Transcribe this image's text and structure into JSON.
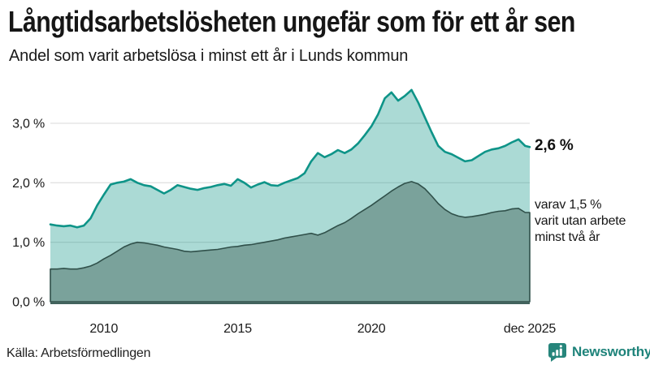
{
  "header": {
    "title": "Långtidsarbetslösheten ungefär som för ett år sen",
    "subtitle": "Andel som varit arbetslösa i minst ett år i Lunds kommun"
  },
  "chart_data": {
    "type": "area",
    "title": "Långtidsarbetslösheten ungefär som för ett år sen",
    "subtitle": "Andel som varit arbetslösa i minst ett år i Lunds kommun",
    "xlabel": "",
    "ylabel": "",
    "x_unit": "decimal_year",
    "xlim": [
      2008,
      2025.92
    ],
    "ylim": [
      0,
      3.75
    ],
    "grid": true,
    "legend_position": "none-direct-labels",
    "x": [
      2008,
      2008.25,
      2008.5,
      2008.75,
      2009,
      2009.25,
      2009.5,
      2009.75,
      2010,
      2010.25,
      2010.5,
      2010.75,
      2011,
      2011.25,
      2011.5,
      2011.75,
      2012,
      2012.25,
      2012.5,
      2012.75,
      2013,
      2013.25,
      2013.5,
      2013.75,
      2014,
      2014.25,
      2014.5,
      2014.75,
      2015,
      2015.25,
      2015.5,
      2015.75,
      2016,
      2016.25,
      2016.5,
      2016.75,
      2017,
      2017.25,
      2017.5,
      2017.75,
      2018,
      2018.25,
      2018.5,
      2018.75,
      2019,
      2019.25,
      2019.5,
      2019.75,
      2020,
      2020.25,
      2020.5,
      2020.75,
      2021,
      2021.25,
      2021.5,
      2021.75,
      2022,
      2022.25,
      2022.5,
      2022.75,
      2023,
      2023.25,
      2023.5,
      2023.75,
      2024,
      2024.25,
      2024.5,
      2024.75,
      2025,
      2025.25,
      2025.5,
      2025.75,
      2025.92
    ],
    "series": [
      {
        "name": "Arbetslösa minst ett år",
        "color": "#0e9488",
        "fill": "rgba(14,148,136,0.35)",
        "end_value": 2.6,
        "values": [
          1.3,
          1.28,
          1.27,
          1.28,
          1.25,
          1.28,
          1.4,
          1.62,
          1.8,
          1.97,
          2.0,
          2.02,
          2.06,
          2.0,
          1.96,
          1.94,
          1.88,
          1.82,
          1.88,
          1.96,
          1.93,
          1.9,
          1.88,
          1.91,
          1.93,
          1.96,
          1.98,
          1.95,
          2.06,
          2.0,
          1.92,
          1.97,
          2.01,
          1.96,
          1.95,
          2.0,
          2.04,
          2.08,
          2.16,
          2.36,
          2.5,
          2.43,
          2.48,
          2.55,
          2.5,
          2.56,
          2.66,
          2.8,
          2.95,
          3.15,
          3.42,
          3.52,
          3.38,
          3.46,
          3.56,
          3.35,
          3.1,
          2.85,
          2.62,
          2.52,
          2.48,
          2.42,
          2.36,
          2.38,
          2.45,
          2.52,
          2.56,
          2.58,
          2.62,
          2.68,
          2.73,
          2.62,
          2.6
        ]
      },
      {
        "name": "varav utan arbete minst två år",
        "color": "#30504a",
        "fill": "#7aa29b",
        "end_value": 1.5,
        "values": [
          0.55,
          0.55,
          0.56,
          0.55,
          0.55,
          0.57,
          0.6,
          0.65,
          0.72,
          0.78,
          0.85,
          0.92,
          0.97,
          1.0,
          0.99,
          0.97,
          0.95,
          0.92,
          0.9,
          0.88,
          0.85,
          0.84,
          0.85,
          0.86,
          0.87,
          0.88,
          0.9,
          0.92,
          0.93,
          0.95,
          0.96,
          0.98,
          1.0,
          1.02,
          1.04,
          1.07,
          1.09,
          1.11,
          1.13,
          1.15,
          1.12,
          1.16,
          1.22,
          1.28,
          1.33,
          1.4,
          1.48,
          1.55,
          1.62,
          1.7,
          1.78,
          1.86,
          1.93,
          1.99,
          2.02,
          1.98,
          1.9,
          1.78,
          1.65,
          1.55,
          1.48,
          1.44,
          1.42,
          1.43,
          1.45,
          1.47,
          1.5,
          1.52,
          1.53,
          1.56,
          1.57,
          1.5,
          1.5
        ]
      }
    ],
    "yticks": [
      {
        "value": 0,
        "label": "0,0 %"
      },
      {
        "value": 1,
        "label": "1,0 %"
      },
      {
        "value": 2,
        "label": "2,0 %"
      },
      {
        "value": 3,
        "label": "3,0 %"
      }
    ],
    "xticks": [
      {
        "value": 2010,
        "label": "2010"
      },
      {
        "value": 2015,
        "label": "2015"
      },
      {
        "value": 2020,
        "label": "2020"
      },
      {
        "value": 2025.92,
        "label": "dec 2025"
      }
    ],
    "colors": {
      "grid": "#d8d8d8",
      "axis": "#42635d",
      "tick_text": "#1a1a1a"
    }
  },
  "annotations": {
    "end_value_label": "2,6 %",
    "secondary_label_lines": [
      "varav 1,5 %",
      "varit utan arbete",
      "minst två år"
    ]
  },
  "footer": {
    "source": "Källa: Arbetsförmedlingen",
    "brand": "Newsworthy"
  },
  "icons": {
    "brand_icon": "bar-chart-speech-bubble",
    "brand_color": "#26857b"
  }
}
